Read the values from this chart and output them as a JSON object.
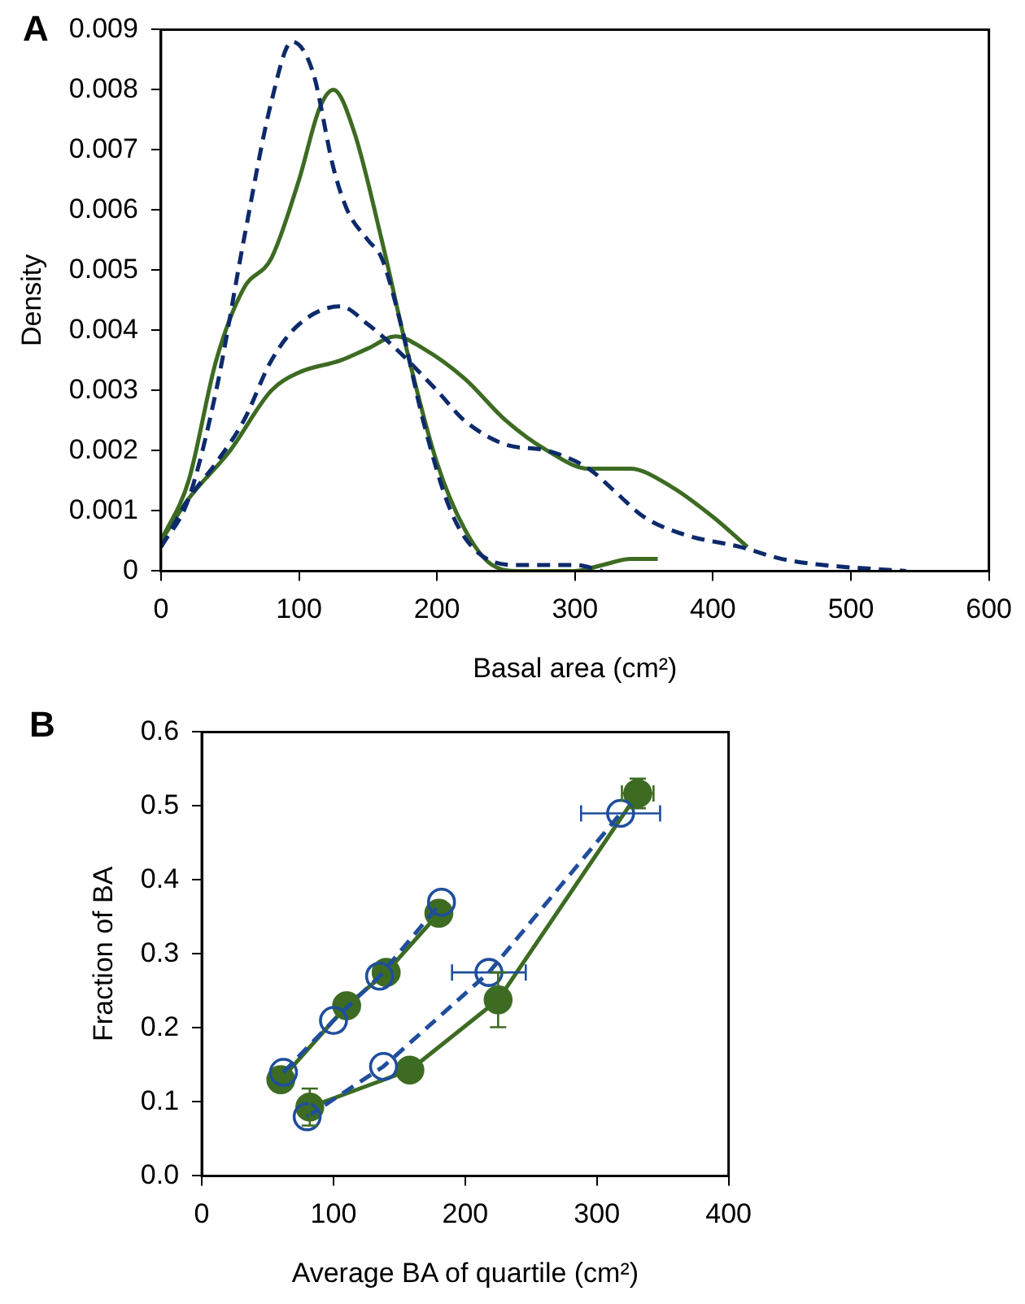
{
  "chart_data": [
    {
      "type": "line",
      "title": "A",
      "xlabel": "Basal area (cm²)",
      "ylabel": "Density",
      "xlim": [
        0,
        600
      ],
      "xticks": [
        0,
        100,
        200,
        300,
        400,
        500,
        600
      ],
      "ylim": [
        0,
        0.009
      ],
      "yticks": [
        0,
        0.001,
        0.002,
        0.003,
        0.004,
        0.005,
        0.006,
        0.007,
        0.008,
        0.009
      ],
      "grid": false,
      "legend": false,
      "marker": "none",
      "series": [
        {
          "color": "#0d2a6b",
          "line_style": "dashed",
          "x": [
            0,
            20,
            40,
            60,
            80,
            95,
            110,
            125,
            135,
            150,
            160,
            175,
            190,
            210,
            230,
            260,
            300,
            320
          ],
          "values": [
            0.0004,
            0.0012,
            0.003,
            0.0055,
            0.0078,
            0.0088,
            0.0083,
            0.0067,
            0.006,
            0.0055,
            0.0052,
            0.004,
            0.0025,
            0.001,
            0.0003,
            0.0001,
            0.0001,
            0
          ]
        },
        {
          "color": "#3d6b22",
          "line_style": "solid",
          "x": [
            0,
            20,
            40,
            60,
            80,
            100,
            115,
            125,
            140,
            160,
            180,
            200,
            220,
            240,
            260,
            300,
            320,
            340,
            360
          ],
          "values": [
            0.0005,
            0.0015,
            0.0035,
            0.0047,
            0.0052,
            0.0065,
            0.0077,
            0.008,
            0.0073,
            0.0055,
            0.0035,
            0.0018,
            0.0007,
            0.0001,
            0,
            0,
            0.0001,
            0.0002,
            0.0002
          ]
        },
        {
          "color": "#0d2a6b",
          "line_style": "dashed",
          "x": [
            0,
            20,
            40,
            60,
            80,
            100,
            130,
            150,
            170,
            200,
            220,
            250,
            280,
            310,
            330,
            350,
            380,
            420,
            450,
            480,
            540
          ],
          "values": [
            0.0004,
            0.0012,
            0.0018,
            0.0025,
            0.0035,
            0.0041,
            0.0044,
            0.0041,
            0.0037,
            0.003,
            0.0025,
            0.0021,
            0.002,
            0.0017,
            0.0013,
            0.0009,
            0.0006,
            0.0004,
            0.0002,
            0.0001,
            0
          ]
        },
        {
          "color": "#3d6b22",
          "line_style": "solid",
          "x": [
            0,
            20,
            50,
            80,
            100,
            130,
            150,
            170,
            190,
            220,
            250,
            280,
            310,
            340,
            370,
            400,
            425
          ],
          "values": [
            0.0005,
            0.0012,
            0.002,
            0.003,
            0.0033,
            0.0035,
            0.0037,
            0.0039,
            0.0037,
            0.0032,
            0.0025,
            0.002,
            0.0017,
            0.0017,
            0.0014,
            0.0009,
            0.0004
          ]
        }
      ]
    },
    {
      "type": "line",
      "title": "B",
      "xlabel": "Average BA of quartile (cm²)",
      "ylabel": "Fraction of BA",
      "xlim": [
        0,
        400
      ],
      "xticks": [
        0,
        100,
        200,
        300,
        400
      ],
      "ylim": [
        0,
        0.6
      ],
      "yticks": [
        {
          "value": 0,
          "label": "0.0"
        },
        0.1,
        0.2,
        0.3,
        0.4,
        0.5,
        0.6
      ],
      "grid": false,
      "legend": false,
      "marker": "circle",
      "series": [
        {
          "color": "#1f4e9c",
          "line_style": "dashed",
          "x": [
            62,
            100,
            135,
            182
          ],
          "values": [
            0.14,
            0.21,
            0.27,
            0.37
          ]
        },
        {
          "color": "#3d6b22",
          "line_style": "solid",
          "x": [
            60,
            110,
            140,
            180
          ],
          "values": [
            0.13,
            0.23,
            0.275,
            0.355
          ]
        },
        {
          "color": "#1f4e9c",
          "line_style": "dashed",
          "x": [
            80,
            138,
            218,
            318
          ],
          "values": [
            0.08,
            0.148,
            0.275,
            0.49
          ],
          "xerrors": [
            null,
            null,
            28,
            30
          ]
        },
        {
          "color": "#3d6b22",
          "line_style": "solid",
          "x": [
            82,
            158,
            225,
            331
          ],
          "values": [
            0.093,
            0.143,
            0.238,
            0.517
          ],
          "errors": [
            0.025,
            null,
            0.037,
            0.02
          ],
          "xerrors": [
            null,
            null,
            null,
            12
          ]
        }
      ]
    }
  ]
}
